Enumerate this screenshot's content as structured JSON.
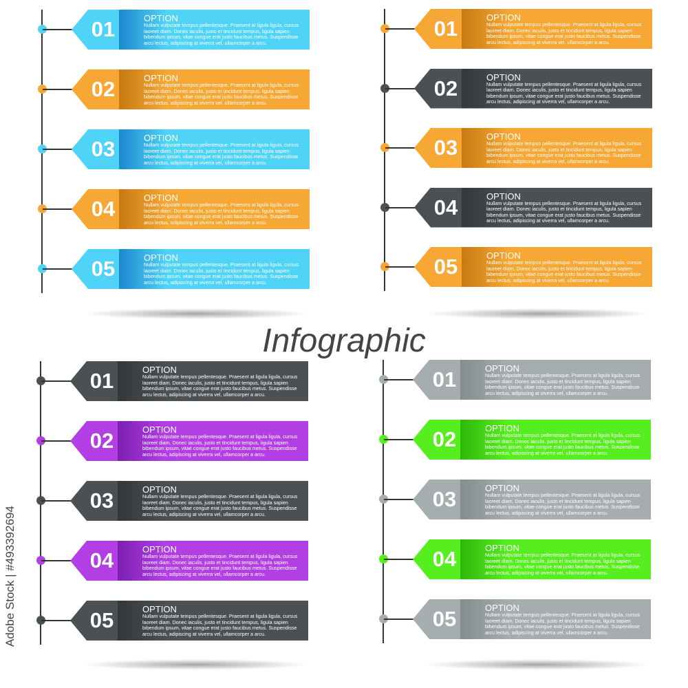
{
  "title": "Infographic",
  "watermark": "Adobe Stock | #493392694",
  "option_label": "OPTION",
  "body_lines": [
    "Nullam vulputate tempus pellentesque. Praesent at ligula ligula, cursus",
    "laoreet diam. Donec iaculis, justo et tincidunt tempus, ligula sapien",
    "bibendum ipsum, vitae congue erat justo faucibus metus. Suspendisse",
    "arcu lectus, adipiscing at viverra vel, ullamcorper a arcu."
  ],
  "colors": {
    "blue": "#4fd3f7",
    "blue_dark": "#1e88cf",
    "orange": "#f7a733",
    "orange_dark": "#c77a12",
    "dark": "#4b5055",
    "dark_dark": "#33373b",
    "purple": "#b23fe3",
    "purple_dark": "#7d1fb0",
    "gray": "#a6adaf",
    "gray_dark": "#858c8e",
    "green": "#57ee1f",
    "green_dark": "#2fb80b"
  },
  "panels": [
    {
      "id": "top-left",
      "items": [
        {
          "number": "01",
          "color": "blue"
        },
        {
          "number": "02",
          "color": "orange"
        },
        {
          "number": "03",
          "color": "blue"
        },
        {
          "number": "04",
          "color": "orange"
        },
        {
          "number": "05",
          "color": "blue"
        }
      ]
    },
    {
      "id": "top-right",
      "items": [
        {
          "number": "01",
          "color": "orange"
        },
        {
          "number": "02",
          "color": "dark"
        },
        {
          "number": "03",
          "color": "orange"
        },
        {
          "number": "04",
          "color": "dark"
        },
        {
          "number": "05",
          "color": "orange"
        }
      ]
    },
    {
      "id": "bottom-left",
      "items": [
        {
          "number": "01",
          "color": "dark"
        },
        {
          "number": "02",
          "color": "purple"
        },
        {
          "number": "03",
          "color": "dark"
        },
        {
          "number": "04",
          "color": "purple"
        },
        {
          "number": "05",
          "color": "dark"
        }
      ]
    },
    {
      "id": "bottom-right",
      "items": [
        {
          "number": "01",
          "color": "gray"
        },
        {
          "number": "02",
          "color": "green"
        },
        {
          "number": "03",
          "color": "gray"
        },
        {
          "number": "04",
          "color": "green"
        },
        {
          "number": "05",
          "color": "gray"
        }
      ]
    }
  ]
}
